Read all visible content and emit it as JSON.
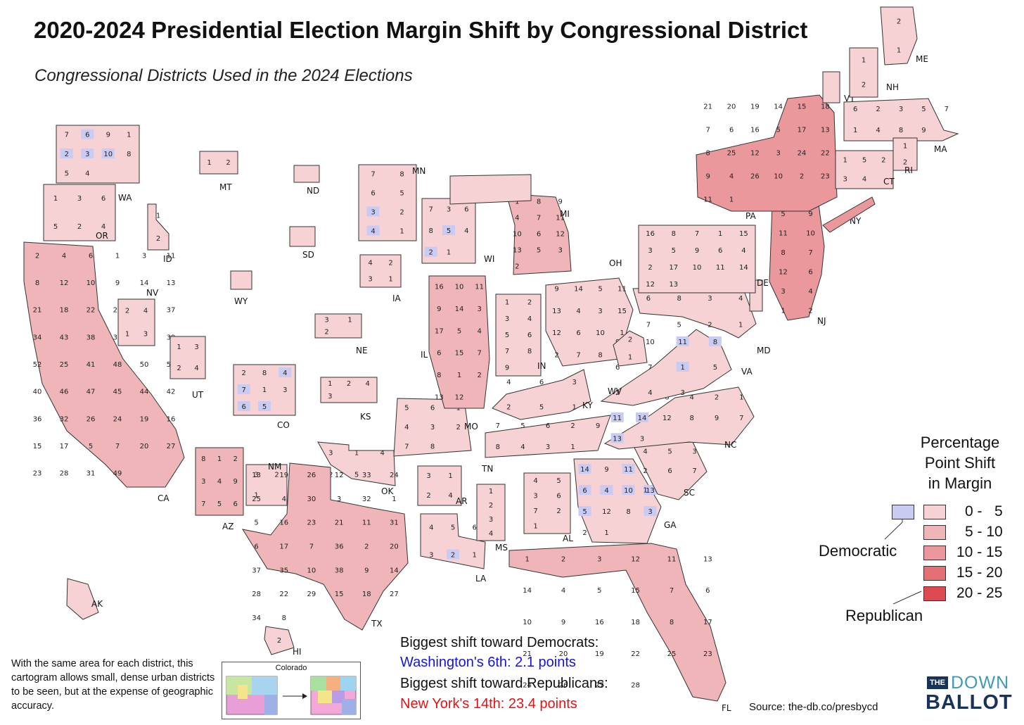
{
  "title": "2020-2024 Presidential Election Margin Shift by Congressional District",
  "subtitle": "Congressional Districts Used in the 2024 Elections",
  "legend": {
    "title_lines": [
      "Percentage",
      "Point Shift",
      "in Margin"
    ],
    "democratic_label": "Democratic",
    "republican_label": "Republican",
    "ranges": [
      "0 -   5",
      "5 - 10",
      "10 - 15",
      "15 - 20",
      "20 - 25"
    ],
    "democratic_color": "#c9cbf2",
    "republican_colors": [
      "#f6d2d4",
      "#f0b5b8",
      "#eb989c",
      "#e47075",
      "#dd4a52"
    ]
  },
  "colors": {
    "stroke": "#333333",
    "dem_text": "#1515d8",
    "rep_text": "#e01414",
    "logo_navy": "#18335a",
    "logo_teal": "#3f9bb5"
  },
  "highlights": {
    "dem_heading": "Biggest shift toward Democrats:",
    "dem_value": "Washington's 6th: 2.1 points",
    "rep_heading": "Biggest shift toward Republicans:",
    "rep_value": "New York's 14th: 23.4 points"
  },
  "note": "With the same area for each district, this cartogram allows small, dense urban districts to be seen, but at the expense of geographic accuracy.",
  "inset": {
    "title": "Colorado"
  },
  "source": "Source: the-db.co/presbycd",
  "logo": {
    "the": "THE",
    "down": "DOWN",
    "ballot": "BALLOT"
  },
  "states": [
    {
      "abbr": "WA",
      "shade": 1,
      "labels": [
        "7",
        "6",
        "9",
        "1",
        "2",
        "3",
        "10",
        "8",
        "5",
        "4"
      ],
      "dem": [
        "6",
        "2",
        "3",
        "10"
      ]
    },
    {
      "abbr": "OR",
      "shade": 1,
      "labels": [
        "1",
        "3",
        "6",
        "5",
        "2",
        "4"
      ]
    },
    {
      "abbr": "CA",
      "shade": 2,
      "labels": [
        "2",
        "4",
        "6",
        "1",
        "3",
        "11",
        "8",
        "12",
        "10",
        "9",
        "14",
        "13",
        "21",
        "18",
        "22",
        "29",
        "30",
        "37",
        "34",
        "43",
        "38",
        "35",
        "33",
        "39",
        "52",
        "25",
        "41",
        "48",
        "50",
        "51",
        "40",
        "46",
        "47",
        "45",
        "44",
        "42",
        "36",
        "32",
        "26",
        "24",
        "19",
        "16",
        "15",
        "17",
        "5",
        "7",
        "20",
        "27",
        "23",
        "28",
        "31",
        "49"
      ]
    },
    {
      "abbr": "NV",
      "shade": 1,
      "labels": [
        "2",
        "4",
        "1",
        "3"
      ]
    },
    {
      "abbr": "ID",
      "shade": 1,
      "labels": [
        "1",
        "2"
      ]
    },
    {
      "abbr": "MT",
      "shade": 1,
      "labels": [
        "1",
        "2"
      ]
    },
    {
      "abbr": "UT",
      "shade": 1,
      "labels": [
        "1",
        "3",
        "2",
        "4"
      ]
    },
    {
      "abbr": "AZ",
      "shade": 2,
      "labels": [
        "8",
        "1",
        "2",
        "3",
        "4",
        "9",
        "7",
        "5",
        "6"
      ]
    },
    {
      "abbr": "WY",
      "shade": 1,
      "labels": []
    },
    {
      "abbr": "CO",
      "shade": 1,
      "labels": [
        "2",
        "8",
        "4",
        "7",
        "1",
        "3",
        "6",
        "5"
      ],
      "dem": [
        "7",
        "6",
        "4",
        "5"
      ]
    },
    {
      "abbr": "NM",
      "shade": 1,
      "labels": [
        "3",
        "2",
        "1"
      ]
    },
    {
      "abbr": "ND",
      "shade": 1,
      "labels": []
    },
    {
      "abbr": "SD",
      "shade": 1,
      "labels": []
    },
    {
      "abbr": "NE",
      "shade": 1,
      "labels": [
        "3",
        "1",
        "2"
      ]
    },
    {
      "abbr": "KS",
      "shade": 1,
      "labels": [
        "1",
        "2",
        "4",
        "3"
      ]
    },
    {
      "abbr": "OK",
      "shade": 1,
      "labels": [
        "3",
        "1",
        "4",
        "2",
        "5"
      ]
    },
    {
      "abbr": "TX",
      "shade": 2,
      "labels": [
        "13",
        "19",
        "26",
        "12",
        "33",
        "24",
        "25",
        "4",
        "30",
        "3",
        "32",
        "1",
        "5",
        "16",
        "23",
        "21",
        "11",
        "31",
        "6",
        "17",
        "7",
        "36",
        "2",
        "20",
        "37",
        "35",
        "10",
        "38",
        "9",
        "14",
        "28",
        "22",
        "29",
        "15",
        "18",
        "27",
        "34",
        "8"
      ]
    },
    {
      "abbr": "MN",
      "shade": 1,
      "labels": [
        "7",
        "8",
        "6",
        "5",
        "3",
        "2",
        "4",
        "1"
      ],
      "dem": [
        "3",
        "4"
      ]
    },
    {
      "abbr": "IA",
      "shade": 1,
      "labels": [
        "4",
        "2",
        "3",
        "1"
      ]
    },
    {
      "abbr": "MO",
      "shade": 1,
      "labels": [
        "5",
        "6",
        "1",
        "4",
        "3",
        "2",
        "7",
        "8"
      ]
    },
    {
      "abbr": "AR",
      "shade": 1,
      "labels": [
        "3",
        "1",
        "2",
        "4"
      ]
    },
    {
      "abbr": "LA",
      "shade": 1,
      "labels": [
        "4",
        "5",
        "6",
        "3",
        "2",
        "1"
      ],
      "dem": [
        "2"
      ]
    },
    {
      "abbr": "WI",
      "shade": 1,
      "labels": [
        "7",
        "3",
        "6",
        "8",
        "5",
        "4",
        "2",
        "1"
      ],
      "dem": [
        "5",
        "2"
      ]
    },
    {
      "abbr": "IL",
      "shade": 2,
      "labels": [
        "16",
        "10",
        "11",
        "9",
        "14",
        "3",
        "17",
        "5",
        "4",
        "6",
        "15",
        "7",
        "8",
        "1",
        "2",
        "13",
        "12"
      ]
    },
    {
      "abbr": "MI",
      "shade": 2,
      "labels": [
        "1",
        "8",
        "9",
        "4",
        "7",
        "11",
        "10",
        "6",
        "12",
        "13",
        "5",
        "3",
        "2"
      ]
    },
    {
      "abbr": "IN",
      "shade": 1,
      "labels": [
        "1",
        "2",
        "3",
        "4",
        "5",
        "6",
        "7",
        "8",
        "9"
      ]
    },
    {
      "abbr": "OH",
      "shade": 1,
      "labels": [
        "9",
        "14",
        "5",
        "11",
        "13",
        "4",
        "3",
        "15",
        "12",
        "6",
        "10",
        "1",
        "2",
        "7",
        "8"
      ]
    },
    {
      "abbr": "KY",
      "shade": 1,
      "labels": [
        "4",
        "6",
        "3",
        "2",
        "5",
        "1"
      ]
    },
    {
      "abbr": "TN",
      "shade": 1,
      "labels": [
        "7",
        "5",
        "6",
        "2",
        "9",
        "8",
        "4",
        "3",
        "1"
      ]
    },
    {
      "abbr": "MS",
      "shade": 1,
      "labels": [
        "1",
        "2",
        "3",
        "4"
      ]
    },
    {
      "abbr": "AL",
      "shade": 1,
      "labels": [
        "4",
        "5",
        "3",
        "6",
        "7",
        "2",
        "1"
      ]
    },
    {
      "abbr": "GA",
      "shade": 1,
      "labels": [
        "14",
        "9",
        "11",
        "7",
        "6",
        "4",
        "10",
        "13",
        "5",
        "12",
        "8",
        "3",
        "2",
        "1"
      ],
      "dem": [
        "14",
        "11",
        "6",
        "4",
        "10",
        "13",
        "5",
        "3"
      ]
    },
    {
      "abbr": "FL",
      "shade": 2,
      "labels": [
        "1",
        "2",
        "3",
        "12",
        "11",
        "13",
        "14",
        "4",
        "5",
        "15",
        "7",
        "6",
        "10",
        "9",
        "16",
        "18",
        "8",
        "17",
        "21",
        "20",
        "19",
        "22",
        "25",
        "23",
        "24",
        "26",
        "27",
        "28"
      ]
    },
    {
      "abbr": "SC",
      "shade": 1,
      "labels": [
        "4",
        "5",
        "3",
        "2",
        "6",
        "7",
        "1"
      ]
    },
    {
      "abbr": "NC",
      "shade": 1,
      "labels": [
        "5",
        "10",
        "6",
        "4",
        "2",
        "1",
        "11",
        "14",
        "12",
        "8",
        "9",
        "7",
        "13",
        "3"
      ],
      "dem": [
        "11",
        "14",
        "13"
      ]
    },
    {
      "abbr": "VA",
      "shade": 1,
      "labels": [
        "9",
        "10",
        "11",
        "8",
        "6",
        "7",
        "1",
        "5",
        "2",
        "4",
        "3"
      ],
      "dem": [
        "8",
        "1",
        "11"
      ]
    },
    {
      "abbr": "WV",
      "shade": 1,
      "labels": [
        "2",
        "1"
      ]
    },
    {
      "abbr": "MD",
      "shade": 1,
      "labels": [
        "6",
        "8",
        "3",
        "4",
        "7",
        "5",
        "2",
        "1"
      ]
    },
    {
      "abbr": "DE",
      "shade": 1,
      "labels": []
    },
    {
      "abbr": "PA",
      "shade": 1,
      "labels": [
        "16",
        "8",
        "7",
        "1",
        "15",
        "3",
        "5",
        "9",
        "6",
        "4",
        "2",
        "17",
        "10",
        "11",
        "14",
        "12",
        "13"
      ]
    },
    {
      "abbr": "NJ",
      "shade": 3,
      "labels": [
        "5",
        "9",
        "11",
        "10",
        "8",
        "7",
        "12",
        "6",
        "3",
        "4",
        "1",
        "2"
      ]
    },
    {
      "abbr": "NY",
      "shade": 3,
      "labels": [
        "21",
        "20",
        "19",
        "14",
        "15",
        "18",
        "7",
        "6",
        "16",
        "5",
        "17",
        "13",
        "8",
        "25",
        "12",
        "3",
        "24",
        "22",
        "9",
        "4",
        "26",
        "10",
        "2",
        "23",
        "11",
        "1"
      ]
    },
    {
      "abbr": "VT",
      "shade": 1,
      "labels": []
    },
    {
      "abbr": "NH",
      "shade": 1,
      "labels": [
        "1",
        "2"
      ]
    },
    {
      "abbr": "ME",
      "shade": 1,
      "labels": [
        "2",
        "1"
      ]
    },
    {
      "abbr": "MA",
      "shade": 1,
      "labels": [
        "6",
        "2",
        "3",
        "5",
        "7",
        "1",
        "4",
        "8",
        "9"
      ]
    },
    {
      "abbr": "CT",
      "shade": 1,
      "labels": [
        "1",
        "5",
        "2",
        "3",
        "4"
      ]
    },
    {
      "abbr": "RI",
      "shade": 1,
      "labels": [
        "1",
        "2"
      ]
    },
    {
      "abbr": "AK",
      "shade": 1,
      "labels": []
    },
    {
      "abbr": "HI",
      "shade": 1,
      "labels": [
        "2"
      ]
    }
  ]
}
